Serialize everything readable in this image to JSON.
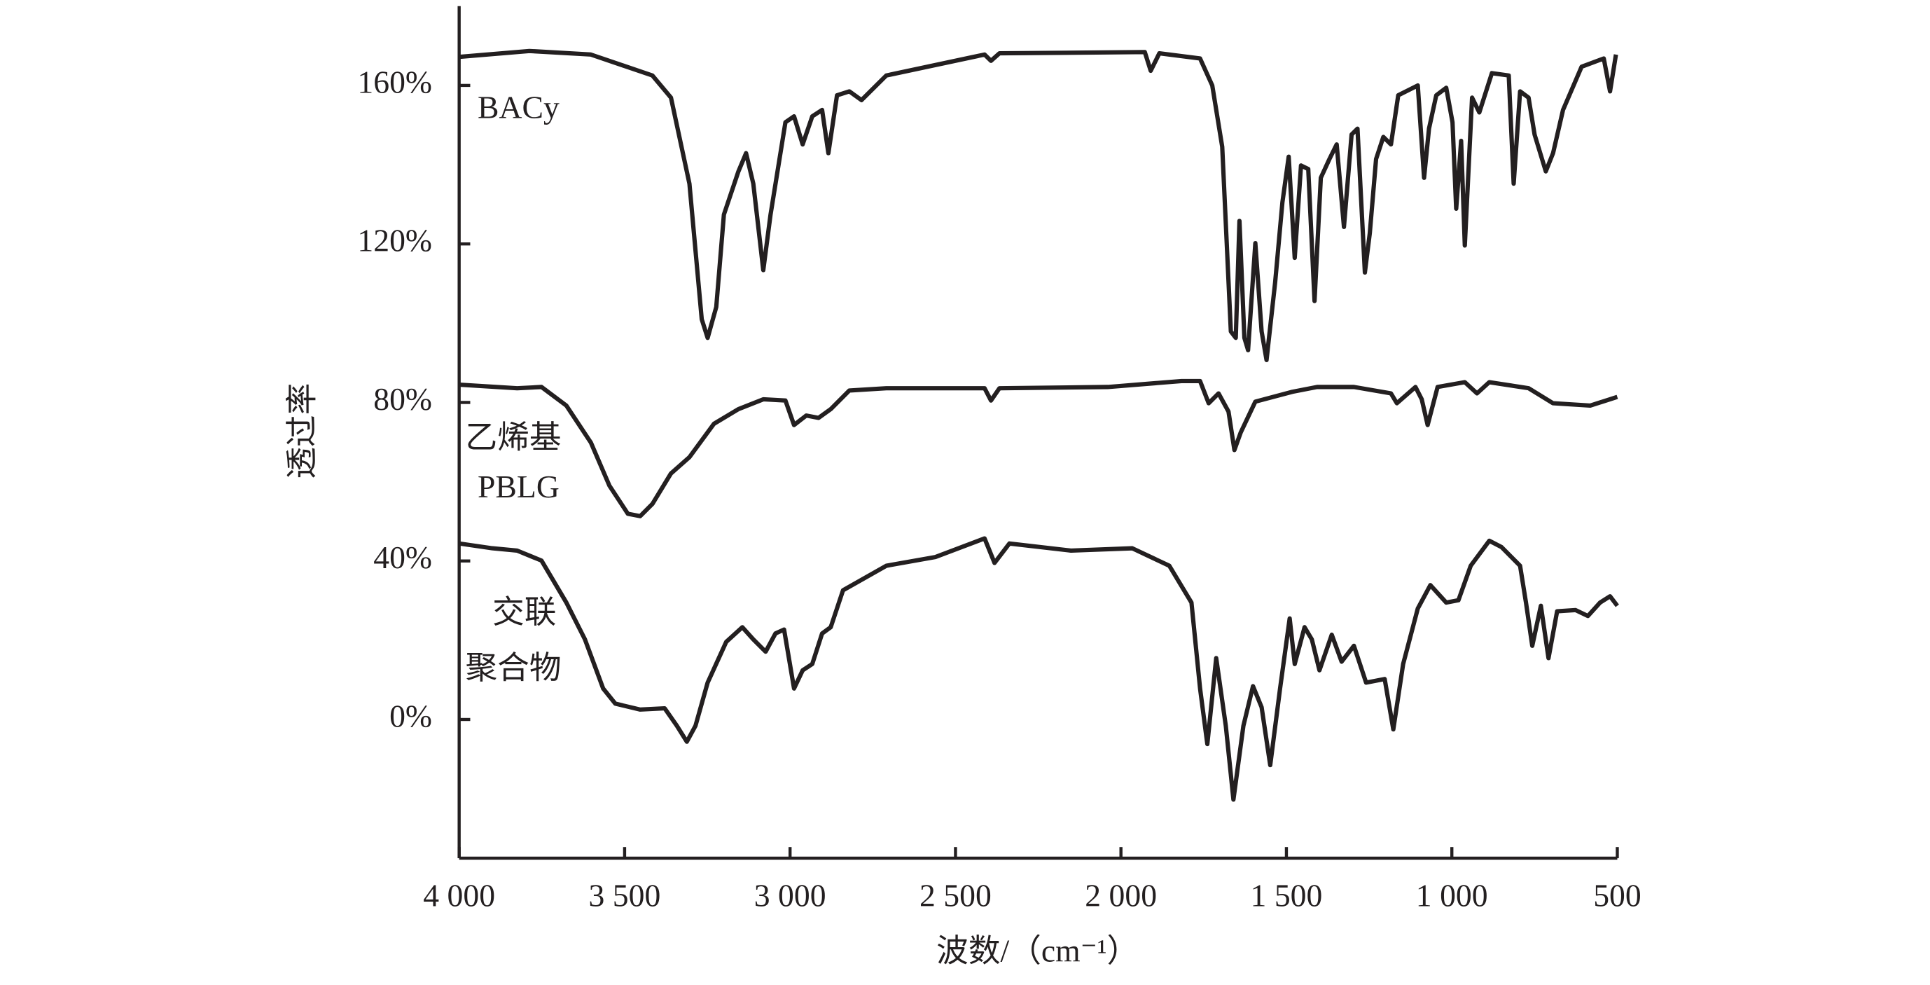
{
  "chart_data": {
    "type": "line",
    "xlabel": "波数/（cm⁻¹）",
    "ylabel": "透过率",
    "xlim": [
      4000,
      500
    ],
    "ylim": [
      -35,
      180
    ],
    "xticks": [
      {
        "value": 4000,
        "label": "4 000"
      },
      {
        "value": 3500,
        "label": "3 500"
      },
      {
        "value": 3000,
        "label": "3 000"
      },
      {
        "value": 2500,
        "label": "2 500"
      },
      {
        "value": 2000,
        "label": "2 000"
      },
      {
        "value": 1500,
        "label": "1 500"
      },
      {
        "value": 1000,
        "label": "1 000"
      },
      500
    ],
    "yticks": [
      {
        "value": 0,
        "label": "0%"
      },
      {
        "value": 40,
        "label": "40%"
      },
      {
        "value": 80,
        "label": "80%"
      },
      {
        "value": 120,
        "label": "120%"
      },
      {
        "value": 160,
        "label": "160%"
      }
    ],
    "annotations": [
      [
        "BACy"
      ],
      [
        "乙烯基",
        "PBLG"
      ],
      [
        "交联",
        "聚合物"
      ]
    ],
    "series": [
      {
        "color": "#231f20",
        "x": [
          4000,
          3788,
          3602,
          3416,
          3360,
          3304,
          3267,
          3249,
          3223,
          3200,
          3156,
          3133,
          3111,
          3081,
          3059,
          3014,
          2988,
          2962,
          2933,
          2903,
          2884,
          2858,
          2821,
          2784,
          2709,
          2412,
          2393,
          2367,
          1928,
          1910,
          1884,
          1761,
          1724,
          1694,
          1668,
          1653,
          1642,
          1627,
          1616,
          1594,
          1575,
          1560,
          1534,
          1512,
          1493,
          1475,
          1456,
          1434,
          1415,
          1396,
          1370,
          1348,
          1326,
          1303,
          1285,
          1263,
          1248,
          1229,
          1207,
          1184,
          1162,
          1103,
          1084,
          1069,
          1047,
          1017,
          998,
          987,
          972,
          961,
          939,
          917,
          879,
          828,
          813,
          794,
          768,
          750,
          716,
          694,
          664,
          608,
          541,
          522,
          504
        ],
        "values": [
          167.2,
          168.7,
          167.8,
          162.5,
          156.9,
          135.2,
          101.0,
          96.3,
          104.1,
          127.4,
          138.3,
          142.9,
          135.2,
          113.4,
          127.4,
          150.7,
          152.2,
          145.1,
          152.2,
          153.8,
          142.9,
          157.5,
          158.5,
          156.3,
          162.5,
          167.8,
          166.2,
          168.1,
          168.4,
          163.7,
          168.1,
          166.8,
          160.0,
          144.5,
          97.9,
          96.3,
          125.8,
          96.3,
          93.2,
          120.2,
          97.9,
          90.7,
          110.3,
          130.5,
          142.0,
          116.5,
          139.8,
          138.9,
          105.6,
          136.7,
          141.4,
          145.1,
          124.3,
          147.6,
          149.1,
          112.8,
          122.7,
          141.4,
          147.0,
          145.1,
          157.5,
          160.0,
          136.7,
          149.1,
          157.5,
          159.4,
          150.7,
          128.9,
          146.0,
          119.6,
          156.9,
          153.2,
          163.1,
          162.5,
          135.2,
          158.5,
          156.9,
          147.6,
          138.3,
          142.9,
          153.8,
          164.7,
          166.8,
          158.5,
          167.8
        ]
      },
      {
        "color": "#231f20",
        "x": [
          4000,
          3825,
          3751,
          3676,
          3602,
          3546,
          3490,
          3453,
          3416,
          3360,
          3304,
          3230,
          3156,
          3081,
          3014,
          2988,
          2951,
          2914,
          2877,
          2821,
          2709,
          2412,
          2393,
          2367,
          2040,
          1817,
          1761,
          1735,
          1705,
          1675,
          1657,
          1638,
          1594,
          1482,
          1407,
          1296,
          1184,
          1166,
          1110,
          1091,
          1073,
          1043,
          961,
          924,
          887,
          768,
          694,
          582,
          500
        ],
        "values": [
          84.5,
          83.6,
          83.9,
          79.2,
          69.9,
          59.0,
          51.9,
          51.3,
          54.4,
          62.1,
          66.2,
          74.6,
          78.3,
          80.8,
          80.5,
          74.3,
          76.7,
          76.1,
          78.3,
          83.0,
          83.6,
          83.6,
          80.5,
          83.6,
          83.9,
          85.4,
          85.4,
          79.8,
          82.3,
          77.7,
          68.0,
          72.4,
          80.2,
          82.7,
          83.9,
          83.9,
          82.3,
          79.8,
          83.9,
          80.8,
          74.3,
          83.9,
          85.1,
          82.3,
          85.1,
          83.6,
          79.8,
          79.2,
          81.4
        ]
      },
      {
        "color": "#231f20",
        "x": [
          4000,
          3900,
          3825,
          3751,
          3676,
          3620,
          3565,
          3528,
          3453,
          3379,
          3342,
          3312,
          3286,
          3249,
          3193,
          3144,
          3111,
          3074,
          3044,
          3018,
          2988,
          2962,
          2933,
          2903,
          2877,
          2840,
          2709,
          2561,
          2412,
          2382,
          2337,
          2151,
          1966,
          1854,
          1787,
          1761,
          1739,
          1712,
          1683,
          1660,
          1630,
          1601,
          1575,
          1549,
          1519,
          1490,
          1475,
          1445,
          1423,
          1400,
          1363,
          1333,
          1296,
          1259,
          1203,
          1177,
          1147,
          1103,
          1065,
          1017,
          980,
          943,
          887,
          850,
          794,
          776,
          757,
          731,
          708,
          682,
          626,
          589,
          552,
          522,
          500
        ],
        "values": [
          44.4,
          43.2,
          42.6,
          40.1,
          29.5,
          20.2,
          7.8,
          4.0,
          2.5,
          2.8,
          -1.6,
          -5.6,
          -1.6,
          9.3,
          19.6,
          23.3,
          20.2,
          17.1,
          21.7,
          22.7,
          7.8,
          12.4,
          14.0,
          21.7,
          23.3,
          32.6,
          38.8,
          41.0,
          45.7,
          39.5,
          44.4,
          42.6,
          43.2,
          38.8,
          29.5,
          7.8,
          -6.2,
          15.5,
          -1.6,
          -20.2,
          -1.6,
          8.4,
          3.1,
          -11.5,
          7.8,
          25.5,
          14.0,
          23.3,
          20.2,
          12.4,
          21.4,
          14.6,
          18.6,
          9.3,
          10.2,
          -2.5,
          14.0,
          28.0,
          33.9,
          29.5,
          30.1,
          38.8,
          45.1,
          43.5,
          38.8,
          29.5,
          18.6,
          28.7,
          15.5,
          27.3,
          27.6,
          26.1,
          29.5,
          31.1,
          28.7
        ]
      }
    ]
  }
}
